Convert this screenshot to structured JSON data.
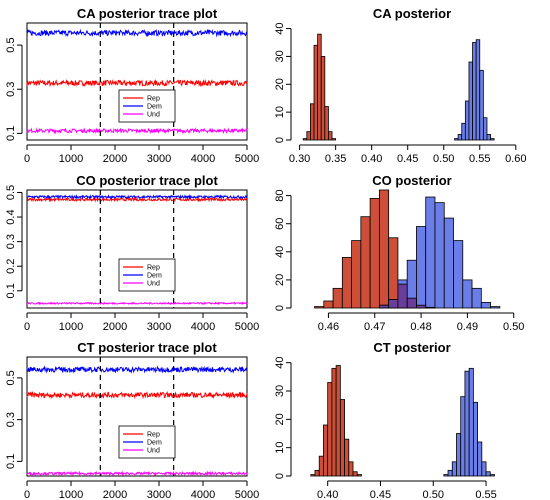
{
  "colors": {
    "rep": "#ff0000",
    "dem": "#0000ff",
    "und": "#ff00ff",
    "rep_hist": "#cd4f39",
    "dem_hist": "#6b7ee8",
    "overlap_hist": "#6a3d9a"
  },
  "chart_data": [
    {
      "id": "ca-trace",
      "type": "line",
      "title": "CA posterior trace plot",
      "xlim": [
        0,
        5000
      ],
      "ylim": [
        0.07,
        0.6
      ],
      "x_ticks": [
        "0",
        "1000",
        "2000",
        "3000",
        "4000",
        "5000"
      ],
      "x_tick_values": [
        0,
        1000,
        2000,
        3000,
        4000,
        5000
      ],
      "y_ticks": [
        "0.1",
        "0.3",
        "0.5"
      ],
      "y_tick_values": [
        0.1,
        0.3,
        0.5
      ],
      "vlines": [
        1667,
        3333
      ],
      "legend": {
        "position": "bottom-center",
        "entries": [
          "Rep",
          "Dem",
          "Und"
        ]
      },
      "series": [
        {
          "name": "Rep",
          "color_key": "rep",
          "mean": 0.328,
          "spread": 0.012
        },
        {
          "name": "Dem",
          "color_key": "dem",
          "mean": 0.555,
          "spread": 0.012
        },
        {
          "name": "Und",
          "color_key": "und",
          "mean": 0.112,
          "spread": 0.008
        }
      ]
    },
    {
      "id": "ca-hist",
      "type": "bar",
      "title": "CA posterior",
      "xlim": [
        0.295,
        0.61
      ],
      "ylim": [
        0,
        42
      ],
      "x_ticks": [
        "0.30",
        "0.35",
        "0.40",
        "0.45",
        "0.50",
        "0.55",
        "0.60"
      ],
      "x_tick_values": [
        0.3,
        0.35,
        0.4,
        0.45,
        0.5,
        0.55,
        0.6
      ],
      "y_ticks": [
        "0",
        "10",
        "20",
        "30",
        "40"
      ],
      "y_tick_values": [
        0,
        10,
        20,
        30,
        40
      ],
      "series": [
        {
          "name": "Rep",
          "color_key": "rep_hist",
          "bin_start": 0.305,
          "bin_width": 0.005,
          "counts": [
            0.5,
            3,
            13,
            34,
            38,
            30,
            12,
            3,
            0.5
          ]
        },
        {
          "name": "Dem",
          "color_key": "dem_hist",
          "bin_start": 0.515,
          "bin_width": 0.005,
          "counts": [
            0.5,
            2,
            6,
            14,
            28,
            35,
            36,
            25,
            8,
            2,
            0.5
          ]
        }
      ]
    },
    {
      "id": "co-trace",
      "type": "line",
      "title": "CO posterior trace plot",
      "xlim": [
        0,
        5000
      ],
      "ylim": [
        0.03,
        0.51
      ],
      "x_ticks": [
        "0",
        "1000",
        "2000",
        "3000",
        "4000",
        "5000"
      ],
      "x_tick_values": [
        0,
        1000,
        2000,
        3000,
        4000,
        5000
      ],
      "y_ticks": [
        "0.1",
        "0.2",
        "0.3",
        "0.4",
        "0.5"
      ],
      "y_tick_values": [
        0.1,
        0.2,
        0.3,
        0.4,
        0.5
      ],
      "vlines": [
        1667,
        3333
      ],
      "legend": {
        "position": "center",
        "entries": [
          "Rep",
          "Dem",
          "Und"
        ]
      },
      "series": [
        {
          "name": "Rep",
          "color_key": "rep",
          "mean": 0.471,
          "spread": 0.005
        },
        {
          "name": "Dem",
          "color_key": "dem",
          "mean": 0.482,
          "spread": 0.005
        },
        {
          "name": "Und",
          "color_key": "und",
          "mean": 0.049,
          "spread": 0.003
        }
      ]
    },
    {
      "id": "co-hist",
      "type": "bar",
      "title": "CO posterior",
      "xlim": [
        0.453,
        0.502
      ],
      "ylim": [
        0,
        84
      ],
      "x_ticks": [
        "0.46",
        "0.47",
        "0.48",
        "0.49",
        "0.50"
      ],
      "x_tick_values": [
        0.46,
        0.47,
        0.48,
        0.49,
        0.5
      ],
      "y_ticks": [
        "0",
        "20",
        "40",
        "60",
        "80"
      ],
      "y_tick_values": [
        0,
        20,
        40,
        60,
        80
      ],
      "series": [
        {
          "name": "Rep",
          "color_key": "rep_hist",
          "bin_start": 0.457,
          "bin_width": 0.002,
          "counts": [
            1,
            5,
            14,
            36,
            48,
            65,
            78,
            84,
            50,
            17,
            7,
            2,
            0.5
          ]
        },
        {
          "name": "Dem",
          "color_key": "dem_hist",
          "bin_start": 0.471,
          "bin_width": 0.002,
          "counts": [
            2,
            6,
            20,
            34,
            58,
            79,
            75,
            64,
            48,
            20,
            14,
            4,
            1
          ]
        }
      ]
    },
    {
      "id": "ct-trace",
      "type": "line",
      "title": "CT posterior trace plot",
      "xlim": [
        0,
        5000
      ],
      "ylim": [
        0.03,
        0.6
      ],
      "x_ticks": [
        "0",
        "1000",
        "2000",
        "3000",
        "4000",
        "5000"
      ],
      "x_tick_values": [
        0,
        1000,
        2000,
        3000,
        4000,
        5000
      ],
      "y_ticks": [
        "0.1",
        "0.3",
        "0.5"
      ],
      "y_tick_values": [
        0.1,
        0.3,
        0.5
      ],
      "vlines": [
        1667,
        3333
      ],
      "legend": {
        "position": "bottom-center",
        "entries": [
          "Rep",
          "Dem",
          "Und"
        ]
      },
      "series": [
        {
          "name": "Rep",
          "color_key": "rep",
          "mean": 0.418,
          "spread": 0.012
        },
        {
          "name": "Dem",
          "color_key": "dem",
          "mean": 0.54,
          "spread": 0.012
        },
        {
          "name": "Und",
          "color_key": "und",
          "mean": 0.042,
          "spread": 0.006
        }
      ]
    },
    {
      "id": "ct-hist",
      "type": "bar",
      "title": "CT posterior",
      "xlim": [
        0.37,
        0.585
      ],
      "ylim": [
        0,
        42
      ],
      "x_ticks": [
        "0.40",
        "0.45",
        "0.50",
        "0.55"
      ],
      "x_tick_values": [
        0.4,
        0.45,
        0.5,
        0.55
      ],
      "y_ticks": [
        "0",
        "10",
        "20",
        "30",
        "40"
      ],
      "y_tick_values": [
        0,
        10,
        20,
        30,
        40
      ],
      "series": [
        {
          "name": "Rep",
          "color_key": "rep_hist",
          "bin_start": 0.384,
          "bin_width": 0.004,
          "counts": [
            0.5,
            2,
            7,
            18,
            33,
            38,
            39,
            27,
            13,
            5,
            1.5,
            0.5
          ]
        },
        {
          "name": "Dem",
          "color_key": "dem_hist",
          "bin_start": 0.51,
          "bin_width": 0.004,
          "counts": [
            0.5,
            2,
            5,
            15,
            28,
            37,
            38,
            26,
            12,
            5,
            1.5,
            0.5
          ]
        }
      ]
    }
  ]
}
